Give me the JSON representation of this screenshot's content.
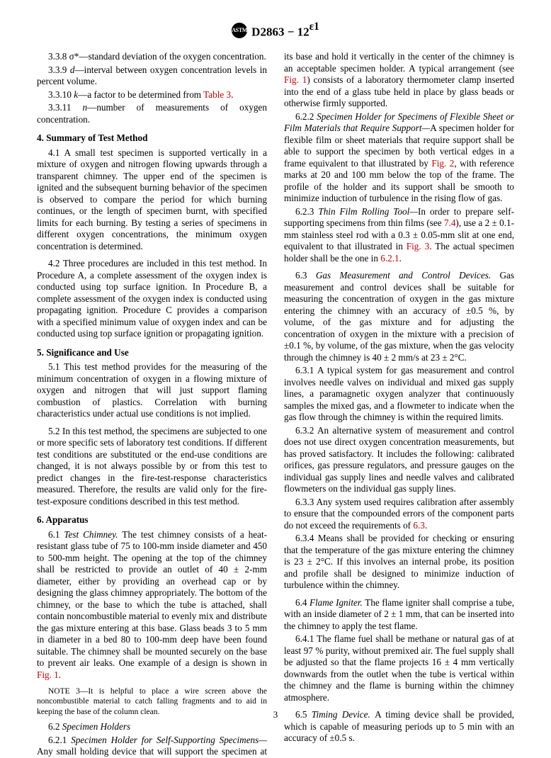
{
  "header": {
    "designation": "D2863 − 12",
    "superscript": "ε1"
  },
  "pageNumber": "3",
  "refs": {
    "table3": "Table 3",
    "fig1a": "Fig. 1",
    "fig1b": "Fig. 1",
    "fig2": "Fig. 2",
    "sec74": "7.4",
    "fig3": "Fig. 3",
    "sec621": "6.2.1",
    "sec63": "6.3"
  },
  "defs": {
    "d338_label": "3.3.8 σ*—",
    "d338_text": "standard deviation of the oxygen concentration.",
    "d339_label": "3.3.9 ",
    "d339_sym": "d",
    "d339_text": "—interval between oxygen concentration levels in percent volume.",
    "d3310_label": "3.3.10 ",
    "d3310_sym": "k",
    "d3310_text1": "—a factor to be determined from ",
    "d3310_text2": ".",
    "d3311_label": "3.3.11 ",
    "d3311_sym": "n",
    "d3311_text": "—number of measurements of oxygen concentration."
  },
  "sec4": {
    "head": "4. Summary of Test Method",
    "p41": "4.1 A small test specimen is supported vertically in a mixture of oxygen and nitrogen flowing upwards through a transparent chimney. The upper end of the specimen is ignited and the subsequent burning behavior of the specimen is observed to compare the period for which burning continues, or the length of specimen burnt, with specified limits for each burning. By testing a series of specimens in different oxygen concentrations, the minimum oxygen concentration is determined.",
    "p42": "4.2 Three procedures are included in this test method. In Procedure A, a complete assessment of the oxygen index is conducted using top surface ignition. In Procedure B, a complete assessment of the oxygen index is conducted using propagating ignition. Procedure C provides a comparison with a specified minimum value of oxygen index and can be conducted using top surface ignition or propagating ignition."
  },
  "sec5": {
    "head": "5. Significance and Use",
    "p51": "5.1 This test method provides for the measuring of the minimum concentration of oxygen in a flowing mixture of oxygen and nitrogen that will just support flaming combustion of plastics. Correlation with burning characteristics under actual use conditions is not implied.",
    "p52": "5.2 In this test method, the specimens are subjected to one or more specific sets of laboratory test conditions. If different test conditions are substituted or the end-use conditions are changed, it is not always possible by or from this test to predict changes in the fire-test-response characteristics measured. Therefore, the results are valid only for the fire-test-exposure conditions described in this test method."
  },
  "sec6": {
    "head": "6. Apparatus",
    "p61_lead": "6.1 ",
    "p61_title": "Test Chimney. ",
    "p61_text1": "The test chimney consists of a heat-resistant glass tube of 75 to 100-mm inside diameter and 450 to 500-mm height. The opening at the top of the chimney shall be restricted to provide an outlet of 40 ± 2-mm diameter, either by providing an overhead cap or by designing the glass chimney appropriately. The bottom of the chimney, or the base to which the tube is attached, shall contain noncombustible material to evenly mix and distribute the gas mixture entering at this base. Glass beads 3 to 5 mm in diameter in a bed 80 to 100-mm deep have been found suitable. The chimney shall be mounted securely on the base to prevent air leaks. One example of a design is shown in ",
    "p61_text2": ".",
    "note3_label": "NOTE 3—",
    "note3_text": "It is helpful to place a wire screen above the noncombustible material to catch falling fragments and to aid in keeping the base of the column clean.",
    "p62_lead": "6.2 ",
    "p62_title": "Specimen Holders",
    "p621_lead": "6.2.1 ",
    "p621_title": "Specimen Holder for Self-Supporting Specimens—",
    "p621_text1": "Any small holding device that will support the specimen at its base and hold it vertically in the center of the chimney is an acceptable specimen holder. A typical arrangement (see ",
    "p621_text2": ") consists of a laboratory thermometer clamp inserted into the end of a glass tube held in place by glass beads or otherwise firmly supported.",
    "p622_lead": "6.2.2 ",
    "p622_title": "Specimen Holder for Specimens of Flexible Sheet or Film Materials that Require Support—",
    "p622_text1": "A specimen holder for flexible film or sheet materials that require support shall be able to support the specimen by both vertical edges in a frame equivalent to that illustrated by ",
    "p622_text2": ", with reference marks at 20 and 100 mm below the top of the frame. The profile of the holder and its support shall be smooth to minimize induction of turbulence in the rising flow of gas.",
    "p623_lead": "6.2.3 ",
    "p623_title": "Thin Film Rolling Tool—",
    "p623_text1": "In order to prepare self-supporting specimens from thin films (see ",
    "p623_text2": "), use a 2 ± 0.1-mm stainless steel rod with a 0.3 ± 0.05-mm slit at one end, equivalent to that illustrated in ",
    "p623_text3": ". The actual specimen holder shall be the one in ",
    "p623_text4": ".",
    "p63_lead": "6.3 ",
    "p63_title": "Gas Measurement and Control Devices. ",
    "p63_text": "Gas measurement and control devices shall be suitable for measuring the concentration of oxygen in the gas mixture entering the chimney with an accuracy of ±0.5 %, by volume, of the gas mixture and for adjusting the concentration of oxygen in the mixture with a precision of ±0.1 %, by volume, of the gas mixture, when the gas velocity through the chimney is 40 ± 2 mm/s at 23 ± 2°C.",
    "p631": "6.3.1 A typical system for gas measurement and control involves needle valves on individual and mixed gas supply lines, a paramagnetic oxygen analyzer that continuously samples the mixed gas, and a flowmeter to indicate when the gas flow through the chimney is within the required limits.",
    "p632": "6.3.2 An alternative system of measurement and control does not use direct oxygen concentration measurements, but has proved satisfactory. It includes the following: calibrated orifices, gas pressure regulators, and pressure gauges on the individual gas supply lines and needle valves and calibrated flowmeters on the individual gas supply lines.",
    "p633_text1": "6.3.3 Any system used requires calibration after assembly to ensure that the compounded errors of the component parts do not exceed the requirements of ",
    "p633_text2": ".",
    "p634": "6.3.4 Means shall be provided for checking or ensuring that the temperature of the gas mixture entering the chimney is 23 ± 2°C. If this involves an internal probe, its position and profile shall be designed to minimize induction of turbulence within the chimney.",
    "p64_lead": "6.4 ",
    "p64_title": "Flame Igniter. ",
    "p64_text": "The flame igniter shall comprise a tube, with an inside diameter of 2 ± 1 mm, that can be inserted into the chimney to apply the test flame.",
    "p641": "6.4.1 The flame fuel shall be methane or natural gas of at least 97 % purity, without premixed air. The fuel supply shall be adjusted so that the flame projects 16 ± 4 mm vertically downwards from the outlet when the tube is vertical within the chimney and the flame is burning within the chimney atmosphere.",
    "p65_lead": "6.5 ",
    "p65_title": "Timing Device. ",
    "p65_text": "A timing device shall be provided, which is capable of measuring periods up to 5 min with an accuracy of ±0.5 s."
  }
}
